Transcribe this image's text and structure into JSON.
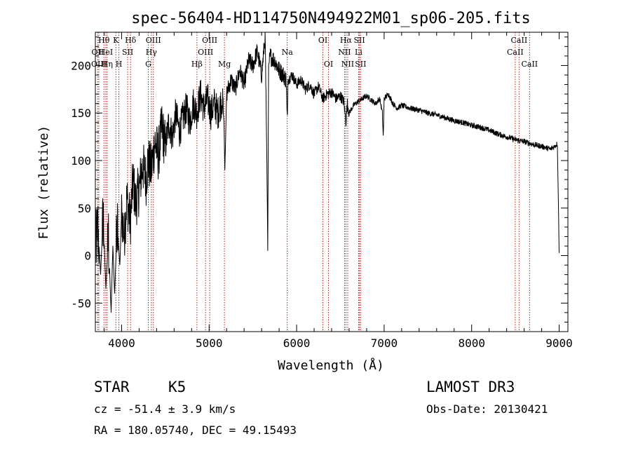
{
  "chart_data": {
    "type": "line",
    "title": "spec-56404-HD114750N494922M01_sp06-205.fits",
    "xlabel": "Wavelength (Å)",
    "ylabel": "Flux (relative)",
    "xlim": [
      3700,
      9100
    ],
    "ylim": [
      -80,
      235
    ],
    "xticks": [
      4000,
      5000,
      6000,
      7000,
      8000,
      9000
    ],
    "yticks": [
      -50,
      0,
      50,
      100,
      150,
      200
    ],
    "grid": false,
    "series": [
      {
        "name": "spectrum",
        "x": [
          3700,
          3730,
          3760,
          3790,
          3820,
          3850,
          3880,
          3900,
          3920,
          3950,
          3980,
          4000,
          4030,
          4060,
          4100,
          4130,
          4160,
          4200,
          4240,
          4280,
          4300,
          4340,
          4380,
          4420,
          4460,
          4500,
          4540,
          4580,
          4620,
          4660,
          4700,
          4740,
          4780,
          4820,
          4860,
          4900,
          4940,
          4980,
          5020,
          5060,
          5100,
          5150,
          5170,
          5180,
          5200,
          5250,
          5300,
          5350,
          5400,
          5450,
          5500,
          5550,
          5600,
          5640,
          5660,
          5670,
          5680,
          5700,
          5750,
          5800,
          5850,
          5880,
          5890,
          5895,
          5900,
          5950,
          6000,
          6050,
          6100,
          6150,
          6200,
          6250,
          6300,
          6350,
          6400,
          6450,
          6500,
          6540,
          6563,
          6580,
          6600,
          6650,
          6700,
          6750,
          6800,
          6850,
          6900,
          6950,
          6980,
          6990,
          7000,
          7050,
          7100,
          7150,
          7200,
          7300,
          7400,
          7500,
          7600,
          7700,
          7800,
          7900,
          8000,
          8100,
          8200,
          8300,
          8400,
          8500,
          8600,
          8700,
          8800,
          8900,
          8950,
          8980,
          9000
        ],
        "values": [
          5,
          30,
          -20,
          45,
          -35,
          20,
          -60,
          10,
          -40,
          30,
          -10,
          45,
          20,
          60,
          35,
          80,
          55,
          70,
          95,
          80,
          100,
          90,
          120,
          105,
          135,
          115,
          140,
          125,
          150,
          130,
          145,
          155,
          140,
          160,
          150,
          170,
          155,
          165,
          150,
          160,
          150,
          165,
          140,
          90,
          170,
          185,
          175,
          195,
          180,
          205,
          200,
          215,
          190,
          230,
          100,
          5,
          200,
          210,
          205,
          195,
          190,
          185,
          150,
          140,
          185,
          190,
          180,
          185,
          175,
          180,
          170,
          178,
          165,
          170,
          172,
          165,
          168,
          162,
          140,
          160,
          150,
          158,
          162,
          165,
          168,
          164,
          160,
          165,
          150,
          125,
          165,
          170,
          160,
          155,
          158,
          155,
          153,
          150,
          148,
          145,
          142,
          140,
          137,
          135,
          132,
          128,
          125,
          122,
          120,
          117,
          115,
          112,
          115,
          118,
          5
        ]
      }
    ],
    "lines": [
      {
        "label": "Hθ",
        "x": 3798,
        "row": 1
      },
      {
        "label": "OII",
        "x": 3727,
        "row": 2
      },
      {
        "label": "HeI",
        "x": 3820,
        "row": 2
      },
      {
        "label": "OIII",
        "x": 3740,
        "row": 3
      },
      {
        "label": "Hη",
        "x": 3835,
        "row": 3
      },
      {
        "label": "K",
        "x": 3934,
        "row": 1
      },
      {
        "label": "H",
        "x": 3969,
        "row": 3
      },
      {
        "label": "Hδ",
        "x": 4102,
        "row": 1
      },
      {
        "label": "SII",
        "x": 4069,
        "row": 2
      },
      {
        "label": "OIII",
        "x": 4363,
        "row": 1
      },
      {
        "label": "Hγ",
        "x": 4340,
        "row": 2
      },
      {
        "label": "G",
        "x": 4305,
        "row": 3
      },
      {
        "label": "Hβ",
        "x": 4861,
        "row": 3
      },
      {
        "label": "OIII",
        "x": 5007,
        "row": 1
      },
      {
        "label": "OIII",
        "x": 4959,
        "row": 2
      },
      {
        "label": "Mg",
        "x": 5175,
        "row": 3
      },
      {
        "label": "Na",
        "x": 5893,
        "row": 2
      },
      {
        "label": "OI",
        "x": 6300,
        "row": 1
      },
      {
        "label": "OI",
        "x": 6364,
        "row": 3
      },
      {
        "label": "Hα",
        "x": 6563,
        "row": 1
      },
      {
        "label": "NII",
        "x": 6548,
        "row": 2
      },
      {
        "label": "NII",
        "x": 6584,
        "row": 3
      },
      {
        "label": "SII",
        "x": 6717,
        "row": 1
      },
      {
        "label": "Li",
        "x": 6708,
        "row": 2
      },
      {
        "label": "SII",
        "x": 6731,
        "row": 3
      },
      {
        "label": "CaII",
        "x": 8542,
        "row": 1
      },
      {
        "label": "CaII",
        "x": 8498,
        "row": 2
      },
      {
        "label": "CaII",
        "x": 8662,
        "row": 3
      }
    ]
  },
  "info": {
    "object_type": "STAR",
    "subclass": "K5",
    "survey": "LAMOST DR3",
    "redshift": "cz = -51.4 ± 3.9 km/s",
    "obs_date": "Obs-Date: 20130421",
    "coords": "RA = 180.05740, DEC =  49.15493"
  },
  "colors": {
    "spectrum": "#000000",
    "line_marker": "#b22222"
  }
}
